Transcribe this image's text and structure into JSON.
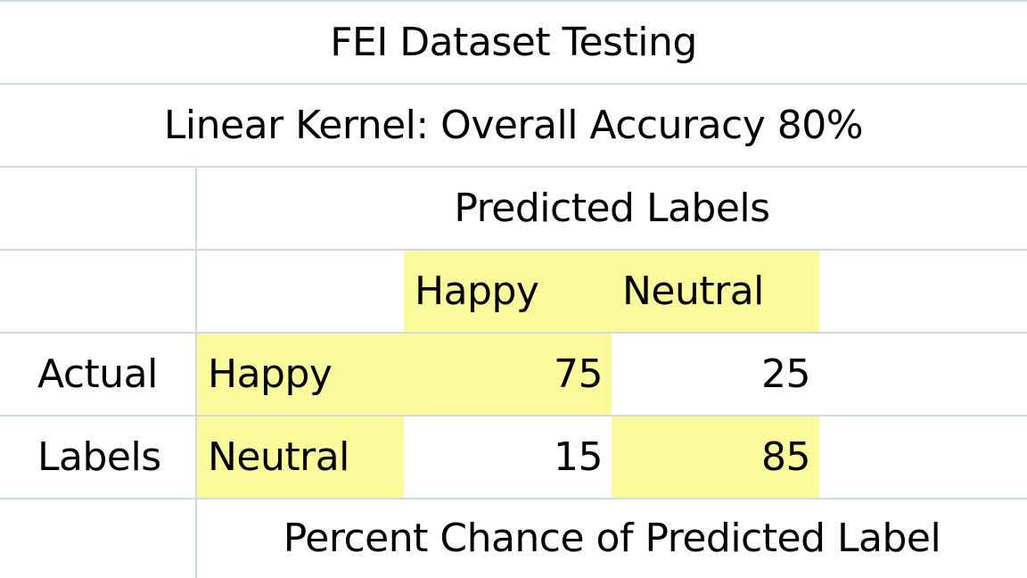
{
  "table": {
    "title": "FEI Dataset Testing",
    "subtitle": "Linear Kernel: Overall Accuracy 80%",
    "predicted_header": "Predicted Labels",
    "column_headers": [
      "Happy",
      "Neutral"
    ],
    "row_group_label": [
      "Actual",
      "Labels"
    ],
    "rows": [
      {
        "label": "Happy",
        "values": [
          "75",
          "25"
        ]
      },
      {
        "label": "Neutral",
        "values": [
          "15",
          "85"
        ]
      }
    ],
    "footer": "Percent Chance of Predicted Label"
  },
  "colors": {
    "highlight": "#fbfb9c",
    "grid": "#d3d9e4"
  }
}
